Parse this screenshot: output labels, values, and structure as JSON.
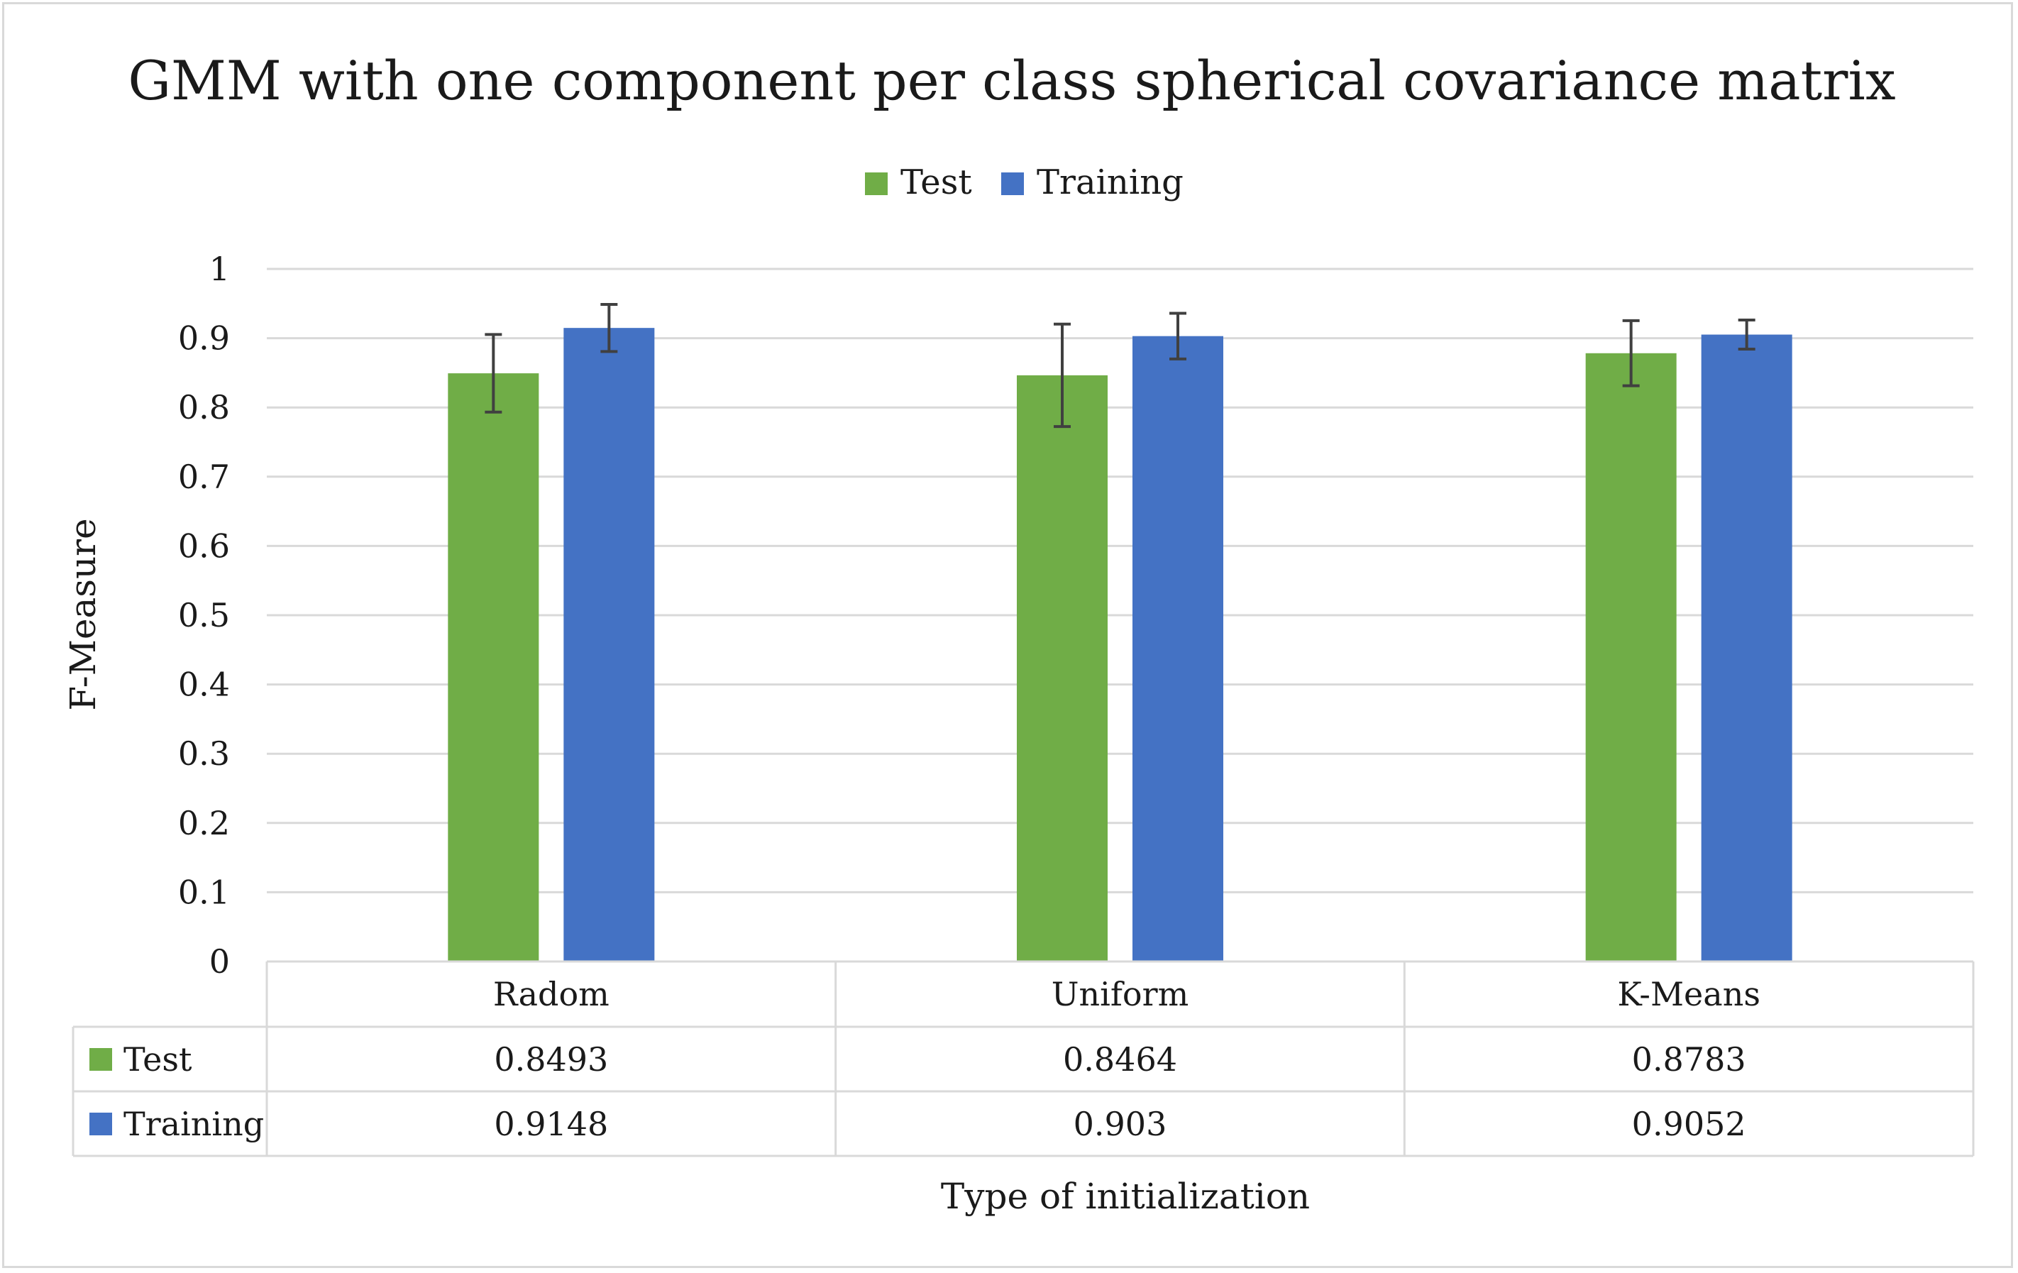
{
  "chart_data": {
    "type": "bar",
    "title": "GMM with one component per class spherical covariance matrix",
    "xlabel": "Type of initialization",
    "ylabel": "F-Measure",
    "categories": [
      "Radom",
      "Uniform",
      "K-Means"
    ],
    "ylim": [
      0,
      1
    ],
    "yticks": [
      "0",
      "0.1",
      "0.2",
      "0.3",
      "0.4",
      "0.5",
      "0.6",
      "0.7",
      "0.8",
      "0.9",
      "1"
    ],
    "grid": true,
    "legend_position": "top",
    "series": [
      {
        "name": "Test",
        "color": "#70ad47",
        "values": [
          0.8493,
          0.8464,
          0.8783
        ],
        "value_labels": [
          "0.8493",
          "0.8464",
          "0.8783"
        ],
        "error": [
          0.056,
          0.074,
          0.047
        ]
      },
      {
        "name": "Training",
        "color": "#4472c4",
        "values": [
          0.9148,
          0.903,
          0.9052
        ],
        "value_labels": [
          "0.9148",
          "0.903",
          "0.9052"
        ],
        "error": [
          0.034,
          0.033,
          0.021
        ]
      }
    ],
    "data_table": true
  }
}
